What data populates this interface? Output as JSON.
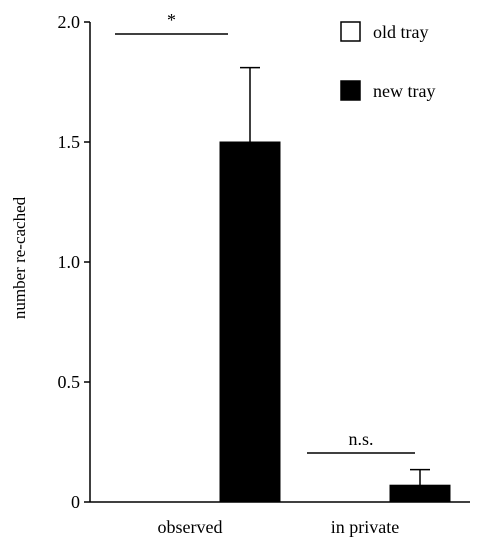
{
  "chart_data": {
    "type": "bar",
    "title": "",
    "xlabel": "",
    "ylabel": "number re-cached",
    "ylim": [
      0,
      2.0
    ],
    "yticks": [
      0,
      0.5,
      1.0,
      1.5,
      2.0
    ],
    "ytick_labels": [
      "0",
      "0.5",
      "1.0",
      "1.5",
      "2.0"
    ],
    "categories": [
      "observed",
      "in private"
    ],
    "series": [
      {
        "name": "old tray",
        "values": [
          0,
          0
        ],
        "errors": [
          0,
          0
        ],
        "color": "#ffffff"
      },
      {
        "name": "new tray",
        "values": [
          1.5,
          0.07
        ],
        "errors": [
          0.31,
          0.065
        ],
        "color": "#000000"
      }
    ],
    "annotations": [
      {
        "category": "observed",
        "text": "*"
      },
      {
        "category": "in private",
        "text": "n.s."
      }
    ],
    "legend": {
      "position": "top-right"
    },
    "grid": false
  }
}
